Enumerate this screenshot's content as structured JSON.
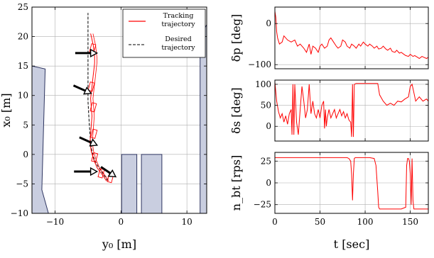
{
  "chart_data": [
    {
      "type": "line",
      "xlabel": "y₀ [m]",
      "ylabel": "x₀ [m]",
      "xlim": [
        -13.5,
        13
      ],
      "ylim": [
        -10,
        25
      ],
      "xticks": [
        -10,
        0,
        10
      ],
      "yticks": [
        -10,
        -5,
        0,
        5,
        10,
        15,
        20,
        25
      ],
      "grid": true,
      "legend": {
        "placement": "top-right",
        "entries": [
          "Tracking trajectory",
          "Desired trajectory"
        ]
      },
      "series": [
        {
          "name": "Tracking trajectory",
          "color": "#ff0000",
          "style": "solid",
          "x": [
            -2.2,
            -2.6,
            -3.0,
            -3.6,
            -4.1,
            -4.5,
            -4.7,
            -4.6,
            -4.5,
            -4.4,
            -4.5,
            -4.6,
            -4.5,
            -4.4,
            -4.3,
            -4.2,
            -4.1,
            -4.0,
            -4.0,
            -4.1,
            -4.2,
            -4.4,
            -4.6
          ],
          "y": [
            -4.5,
            -3.8,
            -3.2,
            -2.3,
            -1.0,
            0.5,
            2.0,
            3.5,
            5.0,
            6.5,
            8.0,
            9.5,
            10.5,
            11.5,
            12.5,
            13.5,
            14.5,
            15.5,
            16.5,
            17.5,
            18.5,
            19.5,
            20.5
          ]
        },
        {
          "name": "Desired trajectory",
          "color": "#000000",
          "style": "dashed",
          "x": [
            -2.0,
            -2.4,
            -2.9,
            -3.5,
            -4.0,
            -4.4,
            -4.6,
            -4.7,
            -4.8,
            -4.9,
            -5.0,
            -5.0,
            -5.0,
            -5.0,
            -5.0,
            -5.0
          ],
          "y": [
            -4.5,
            -3.8,
            -3.0,
            -2.0,
            -1.0,
            0.5,
            2.0,
            3.5,
            5.0,
            7.0,
            9.0,
            11.0,
            14.0,
            17.0,
            20.0,
            24.0
          ]
        }
      ],
      "obstacles": [
        {
          "shape": "polygon",
          "x": [
            -13.5,
            -11.5,
            -12.0,
            -11.0,
            -13.5
          ],
          "y": [
            15.0,
            14.5,
            -6.0,
            -10.0,
            -10.0
          ]
        },
        {
          "shape": "polygon",
          "x": [
            12.0,
            12.0,
            13.0,
            13.0
          ],
          "y": [
            -10.0,
            20.0,
            22.0,
            -10.0
          ]
        },
        {
          "shape": "rect",
          "x": [
            0.1,
            2.4
          ],
          "y": [
            -10.0,
            0.0
          ]
        },
        {
          "shape": "rect",
          "x": [
            3.1,
            6.2
          ],
          "y": [
            -10.0,
            0.0
          ]
        }
      ],
      "arrows": [
        {
          "x": -4.6,
          "y": 17.2,
          "dx": 1.3,
          "dy": 0.0
        },
        {
          "x": -5.4,
          "y": 10.8,
          "dx": 1.0,
          "dy": -0.5
        },
        {
          "x": -4.5,
          "y": 2.0,
          "dx": 1.0,
          "dy": -0.5
        },
        {
          "x": -4.6,
          "y": -2.9,
          "dx": 1.4,
          "dy": 0.0
        },
        {
          "x": -1.6,
          "y": -3.2,
          "dx": 0.8,
          "dy": -0.6
        }
      ]
    },
    {
      "type": "line",
      "ylabel": "δp [deg]",
      "xlabel": "",
      "xlim": [
        0,
        170
      ],
      "ylim": [
        -110,
        40
      ],
      "xticks": [
        0,
        50,
        100,
        150
      ],
      "yticks": [
        -100,
        0
      ],
      "grid": true,
      "series": [
        {
          "color": "#ff0000",
          "x": [
            0,
            1,
            2,
            3,
            5,
            8,
            10,
            14,
            18,
            22,
            25,
            28,
            32,
            35,
            38,
            40,
            42,
            45,
            48,
            50,
            52,
            55,
            58,
            60,
            62,
            65,
            68,
            70,
            73,
            75,
            78,
            80,
            83,
            85,
            88,
            90,
            93,
            95,
            98,
            100,
            103,
            105,
            108,
            110,
            113,
            115,
            118,
            120,
            123,
            125,
            128,
            130,
            133,
            135,
            138,
            140,
            143,
            145,
            148,
            150,
            153,
            155,
            158,
            160,
            163,
            165,
            168,
            170
          ],
          "y": [
            30,
            15,
            -20,
            -35,
            -50,
            -45,
            -30,
            -40,
            -45,
            -40,
            -55,
            -50,
            -60,
            -70,
            -50,
            -75,
            -55,
            -60,
            -70,
            -55,
            -50,
            -60,
            -55,
            -40,
            -35,
            -45,
            -55,
            -60,
            -55,
            -40,
            -45,
            -55,
            -60,
            -50,
            -55,
            -60,
            -50,
            -55,
            -45,
            -50,
            -55,
            -50,
            -55,
            -60,
            -55,
            -62,
            -60,
            -55,
            -62,
            -65,
            -60,
            -68,
            -70,
            -65,
            -72,
            -70,
            -75,
            -78,
            -80,
            -75,
            -80,
            -78,
            -82,
            -85,
            -80,
            -82,
            -85,
            -82
          ]
        }
      ]
    },
    {
      "type": "line",
      "ylabel": "δs [deg]",
      "xlabel": "",
      "xlim": [
        0,
        170
      ],
      "ylim": [
        -35,
        110
      ],
      "xticks": [
        0,
        50,
        100,
        150
      ],
      "yticks": [
        0,
        50,
        100
      ],
      "grid": true,
      "series": [
        {
          "color": "#ff0000",
          "x": [
            0,
            2,
            4,
            6,
            8,
            10,
            12,
            14,
            16,
            18,
            19,
            20,
            21,
            22,
            24,
            26,
            28,
            30,
            32,
            34,
            36,
            38,
            40,
            42,
            44,
            46,
            48,
            50,
            52,
            54,
            55,
            56,
            57,
            58,
            60,
            62,
            64,
            66,
            68,
            70,
            72,
            74,
            76,
            78,
            80,
            82,
            84,
            85,
            86,
            87,
            88,
            90,
            92,
            100,
            110,
            114,
            116,
            120,
            124,
            128,
            132,
            136,
            140,
            144,
            148,
            150,
            152,
            154,
            156,
            160,
            164,
            168,
            170
          ],
          "y": [
            105,
            60,
            35,
            20,
            30,
            10,
            25,
            5,
            30,
            40,
            -20,
            100,
            -20,
            100,
            10,
            -20,
            40,
            95,
            60,
            20,
            40,
            100,
            30,
            60,
            30,
            20,
            40,
            20,
            50,
            60,
            -5,
            40,
            0,
            20,
            40,
            20,
            30,
            40,
            20,
            30,
            40,
            25,
            35,
            20,
            30,
            15,
            10,
            -25,
            100,
            -25,
            100,
            102,
            102,
            102,
            102,
            102,
            75,
            60,
            50,
            55,
            50,
            60,
            58,
            65,
            70,
            95,
            100,
            80,
            60,
            70,
            60,
            65,
            60
          ]
        }
      ]
    },
    {
      "type": "line",
      "ylabel": "n_bt [rps]",
      "xlabel": "t [sec]",
      "xlim": [
        0,
        170
      ],
      "ylim": [
        -35,
        35
      ],
      "xticks": [
        0,
        50,
        100,
        150
      ],
      "xticklabels": [
        "0",
        "50",
        "100",
        "150"
      ],
      "yticks": [
        -25,
        0,
        25
      ],
      "grid": true,
      "series": [
        {
          "color": "#ff0000",
          "x": [
            0,
            10,
            20,
            30,
            40,
            50,
            60,
            70,
            80,
            82,
            84,
            85,
            86,
            87,
            88,
            89,
            90,
            95,
            100,
            105,
            110,
            112,
            114,
            115,
            116,
            120,
            130,
            140,
            145,
            146,
            147,
            148,
            149,
            150,
            151,
            152,
            153,
            154,
            160,
            170
          ],
          "y": [
            29,
            29,
            29,
            29,
            29,
            29,
            29,
            29,
            29,
            28,
            25,
            10,
            -20,
            10,
            28,
            29,
            29,
            29,
            29,
            29,
            28,
            20,
            -10,
            -28,
            -30,
            -30,
            -30,
            -30,
            -28,
            20,
            28,
            28,
            25,
            10,
            -25,
            28,
            -20,
            -30,
            -30,
            -30
          ]
        }
      ]
    }
  ]
}
